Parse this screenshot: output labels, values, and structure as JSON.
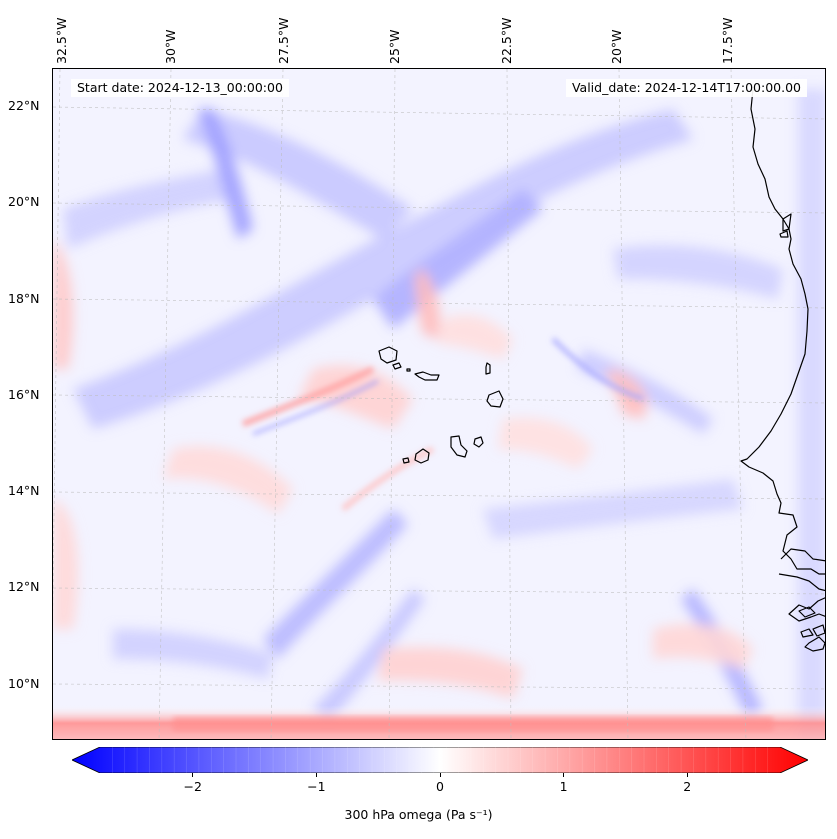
{
  "map": {
    "start_date": "Start date: 2024-12-13_00:00:00",
    "valid_date": "Valid_date: 2024-12-14T17:00:00.00",
    "variable": "300 hPa omega",
    "units": "Pa s⁻¹",
    "longitude_labels": [
      "32.5°W",
      "30°W",
      "27.5°W",
      "25°W",
      "22.5°W",
      "20°W",
      "17.5°W"
    ],
    "latitude_labels": [
      "22°N",
      "20°N",
      "18°N",
      "16°N",
      "14°N",
      "12°N",
      "10°N"
    ],
    "longitudes": [
      -32.5,
      -30,
      -27.5,
      -25,
      -22.5,
      -20,
      -17.5
    ],
    "latitudes": [
      22,
      20,
      18,
      16,
      14,
      12,
      10
    ],
    "colors": {
      "negative": "#0000ff",
      "zero": "#ffffff",
      "positive": "#ff0000",
      "coast": "#000000"
    }
  },
  "colorbar": {
    "label": "300 hPa omega (Pa s⁻¹)",
    "min": -2.75,
    "max": 2.75,
    "ticks": [
      {
        "value": -2,
        "label": "−2"
      },
      {
        "value": -1,
        "label": "−1"
      },
      {
        "value": 0,
        "label": "0"
      },
      {
        "value": 1,
        "label": "1"
      },
      {
        "value": 2,
        "label": "2"
      }
    ]
  }
}
